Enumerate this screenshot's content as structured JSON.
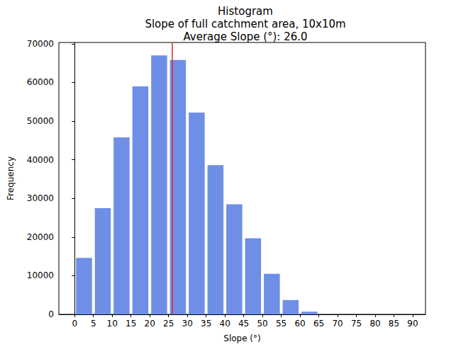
{
  "chart_data": {
    "type": "histogram",
    "title": "Histogram\nSlope of full catchment area, 10x10m\nAverage Slope (°): 26.0",
    "x_label": "Slope (°)",
    "y_label": "Frequency",
    "bins": [
      0,
      5,
      10,
      15,
      20,
      25,
      30,
      35,
      40,
      45,
      50,
      55,
      60,
      65,
      70,
      75,
      80,
      85,
      90
    ],
    "values": [
      14600,
      27500,
      45800,
      59000,
      67000,
      65800,
      52200,
      38600,
      28500,
      19700,
      10500,
      3700,
      700,
      30,
      0,
      0,
      0,
      0
    ],
    "color": "#6f8fe6",
    "mean_line": {
      "value": 26.0,
      "color": "#e5252b"
    },
    "xlim": [
      -4.2,
      93.4
    ],
    "xticks": [
      0,
      5,
      10,
      15,
      20,
      25,
      30,
      35,
      40,
      45,
      50,
      55,
      60,
      65,
      70,
      75,
      80,
      85,
      90
    ],
    "ylim": [
      0,
      70350
    ],
    "yticks": [
      0,
      10000,
      20000,
      30000,
      40000,
      50000,
      60000,
      70000
    ],
    "grid": false
  }
}
